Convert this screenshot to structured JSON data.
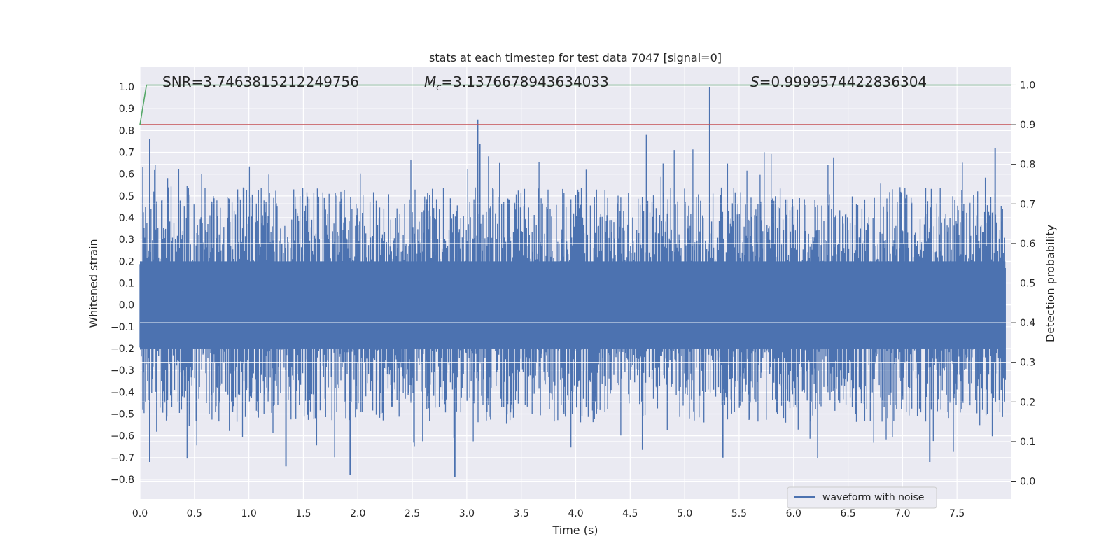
{
  "chart_data": {
    "type": "line",
    "title": "stats at each timestep for test data 7047 [signal=0]",
    "xlabel": "Time (s)",
    "ylabel": "Whitened strain",
    "y2label": "Detection probability",
    "xlim": [
      0.0,
      8.0
    ],
    "ylim": [
      -0.89,
      1.09
    ],
    "y2lim": [
      -0.045,
      1.045
    ],
    "xticks": [
      "0.0",
      "0.5",
      "1.0",
      "1.5",
      "2.0",
      "2.5",
      "3.0",
      "3.5",
      "4.0",
      "4.5",
      "5.0",
      "5.5",
      "6.0",
      "6.5",
      "7.0",
      "7.5"
    ],
    "yticks": [
      "1.0",
      "0.9",
      "0.8",
      "0.7",
      "0.6",
      "0.5",
      "0.4",
      "0.3",
      "0.2",
      "0.1",
      "0.0",
      "−0.1",
      "−0.2",
      "−0.3",
      "−0.4",
      "−0.5",
      "−0.6",
      "−0.7",
      "−0.8"
    ],
    "y2ticks": [
      "1.0",
      "0.9",
      "0.8",
      "0.7",
      "0.6",
      "0.5",
      "0.4",
      "0.3",
      "0.2",
      "0.1",
      "0.0"
    ],
    "annotations": {
      "snr": "SNR=3.7463815212249756",
      "mc_symbol": "M",
      "mc_sub": "c",
      "mc_value": "=3.1376678943634033",
      "s_symbol": "S",
      "s_value": "=0.9999574422836304"
    },
    "legend": {
      "label": "waveform with noise",
      "loc": "lower-right"
    },
    "series": [
      {
        "name": "waveform with noise",
        "color": "#4c72b0",
        "axis": "left",
        "kind": "noise",
        "envelope_upper_typical": 0.45,
        "envelope_lower_typical": -0.45,
        "spikes": [
          {
            "t": 3.1,
            "v": 0.85
          },
          {
            "t": 3.12,
            "v": 0.74
          },
          {
            "t": 5.23,
            "v": 1.0
          },
          {
            "t": 4.65,
            "v": 0.78
          },
          {
            "t": 0.09,
            "v": 0.76
          },
          {
            "t": 7.85,
            "v": 0.72
          },
          {
            "t": 1.93,
            "v": -0.78
          },
          {
            "t": 2.89,
            "v": -0.79
          },
          {
            "t": 7.25,
            "v": -0.72
          },
          {
            "t": 1.34,
            "v": -0.74
          },
          {
            "t": 0.09,
            "v": -0.72
          },
          {
            "t": 5.35,
            "v": -0.7
          }
        ]
      },
      {
        "name": "detection probability",
        "color": "#55a868",
        "axis": "right",
        "x": [
          0.0,
          0.06,
          8.0
        ],
        "y": [
          0.9,
          1.0,
          1.0
        ]
      },
      {
        "name": "threshold",
        "color": "#c44e52",
        "axis": "right",
        "x": [
          0.0,
          8.0
        ],
        "y": [
          0.9,
          0.9
        ]
      }
    ]
  }
}
